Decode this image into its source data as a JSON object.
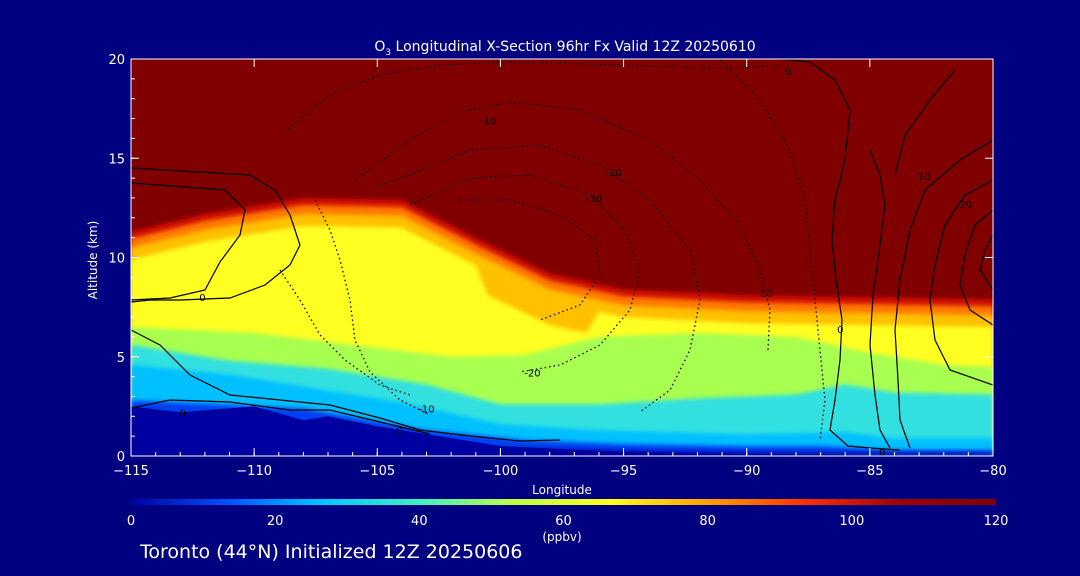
{
  "chart_data": {
    "type": "heatmap",
    "title_prefix": "O",
    "title_subscript": "3",
    "title_rest": " Longitudinal X-Section 96hr  Fx Valid 12Z 20250610",
    "ylabel": "Altitude (km)",
    "xlabel": "Longitude",
    "xlim": [
      -115,
      -80
    ],
    "ylim": [
      0,
      20
    ],
    "x_ticks": [
      -115,
      -110,
      -105,
      -100,
      -95,
      -90,
      -85,
      -80
    ],
    "x_tick_labels": [
      "−115",
      "−110",
      "−105",
      "−100",
      "−95",
      "−90",
      "−85",
      "−80"
    ],
    "y_ticks": [
      0,
      5,
      10,
      15,
      20
    ],
    "y_tick_labels": [
      "0",
      "5",
      "10",
      "15",
      "20"
    ],
    "colorbar": {
      "min": 0,
      "max": 120,
      "ticks": [
        0,
        20,
        40,
        60,
        80,
        100,
        120
      ],
      "tick_labels": [
        "0",
        "20",
        "40",
        "60",
        "80",
        "100",
        "120"
      ],
      "unit": "(ppbv)",
      "colors": [
        "#0000a0",
        "#0050ff",
        "#00c8ff",
        "#40f0c0",
        "#c0ff40",
        "#ffff20",
        "#ffa000",
        "#ff3000",
        "#a00000",
        "#800000"
      ]
    },
    "fill_colors": {
      "stratosphere": "#800000",
      "band_deep_red": "#d01000",
      "band_orange": "#ff7800",
      "band_yellow_orange": "#ffc000",
      "band_yellow": "#ffff20",
      "band_lime": "#a8ff50",
      "band_cyan": "#30e0e0",
      "band_sky": "#00c0ff",
      "band_blue": "#0040f0",
      "band_navy": "#0000a0"
    },
    "tropopause_height_km": [
      {
        "lon": -115,
        "km": 11.3
      },
      {
        "lon": -112,
        "km": 12.2
      },
      {
        "lon": -108,
        "km": 13.0
      },
      {
        "lon": -104,
        "km": 12.9
      },
      {
        "lon": -101,
        "km": 11.0
      },
      {
        "lon": -98,
        "km": 9.2
      },
      {
        "lon": -95,
        "km": 8.4
      },
      {
        "lon": -90,
        "km": 8.1
      },
      {
        "lon": -85,
        "km": 8.0
      },
      {
        "lon": -80,
        "km": 7.9
      }
    ],
    "terrain_height_km": [
      {
        "lon": -115,
        "km": 2.5
      },
      {
        "lon": -113,
        "km": 2.2
      },
      {
        "lon": -110,
        "km": 2.5
      },
      {
        "lon": -108,
        "km": 1.8
      },
      {
        "lon": -107,
        "km": 2.0
      },
      {
        "lon": -105,
        "km": 1.5
      },
      {
        "lon": -100,
        "km": 0.5
      },
      {
        "lon": -95,
        "km": 0.2
      },
      {
        "lon": -90,
        "km": 0.1
      },
      {
        "lon": -80,
        "km": 0.0
      }
    ],
    "contour_labels": [
      {
        "text": "0",
        "lon": -112.1,
        "km": 8.0
      },
      {
        "text": "0",
        "lon": -112.9,
        "km": 2.2
      },
      {
        "text": "0",
        "lon": -104.1,
        "km": 1.3
      },
      {
        "text": "0",
        "lon": -84.5,
        "km": 0.2
      },
      {
        "text": "0",
        "lon": -86.2,
        "km": 6.4
      },
      {
        "text": "0",
        "lon": -88.3,
        "km": 19.4
      },
      {
        "text": "-10",
        "lon": -100.5,
        "km": 16.9
      },
      {
        "text": "-10",
        "lon": -103,
        "km": 2.4
      },
      {
        "text": "-20",
        "lon": -95.4,
        "km": 14.3
      },
      {
        "text": "-20",
        "lon": -98.7,
        "km": 4.2
      },
      {
        "text": "-30",
        "lon": -96.2,
        "km": 13.0
      },
      {
        "text": "10",
        "lon": -82.8,
        "km": 14.1
      },
      {
        "text": "20",
        "lon": -81.1,
        "km": 12.7
      },
      {
        "text": "10",
        "lon": -89.2,
        "km": 8.2
      }
    ]
  },
  "footer": {
    "caption": "Toronto (44°N) Initialized 12Z 20250606"
  }
}
